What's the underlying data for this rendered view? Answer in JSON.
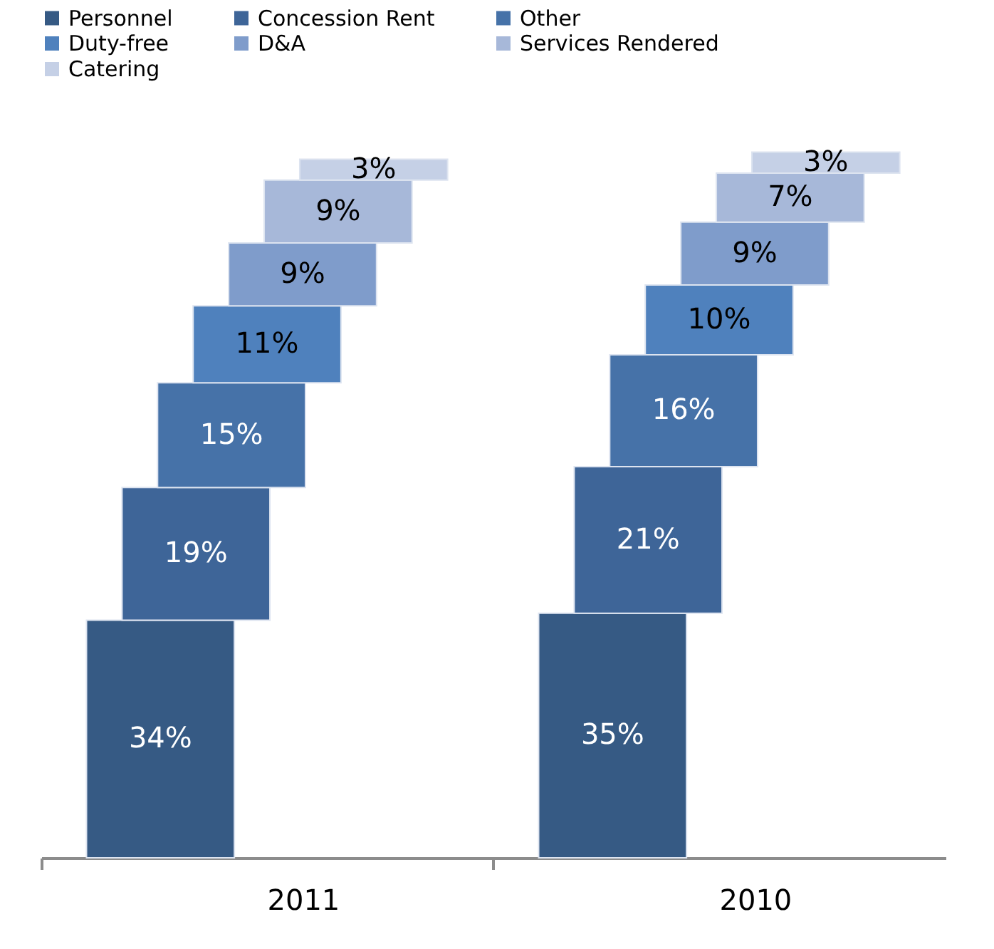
{
  "chart_data": {
    "type": "bar",
    "stacked": true,
    "legend": "top",
    "categories": [
      "2011",
      "2010"
    ],
    "series": [
      {
        "name": "Personnel",
        "color": "#365a84",
        "values": [
          34,
          35
        ],
        "value_labels": [
          "34%",
          "35%"
        ]
      },
      {
        "name": "Concession Rent",
        "color": "#3e6598",
        "values": [
          19,
          21
        ],
        "value_labels": [
          "19%",
          "21%"
        ]
      },
      {
        "name": "Other",
        "color": "#4672a8",
        "values": [
          15,
          16
        ],
        "value_labels": [
          "15%",
          "16%"
        ]
      },
      {
        "name": "Duty-free",
        "color": "#4f81bd",
        "values": [
          11,
          10
        ],
        "value_labels": [
          "11%",
          "10%"
        ]
      },
      {
        "name": "D&A",
        "color": "#7f9ccb",
        "values": [
          9,
          9
        ],
        "value_labels": [
          "9%",
          "9%"
        ]
      },
      {
        "name": "Services Rendered",
        "color": "#a7b8d9",
        "values": [
          9,
          7
        ],
        "value_labels": [
          "9%",
          "7%"
        ]
      },
      {
        "name": "Catering",
        "color": "#c5d0e6",
        "values": [
          3,
          3
        ],
        "value_labels": [
          "3%",
          "3%"
        ]
      }
    ]
  }
}
